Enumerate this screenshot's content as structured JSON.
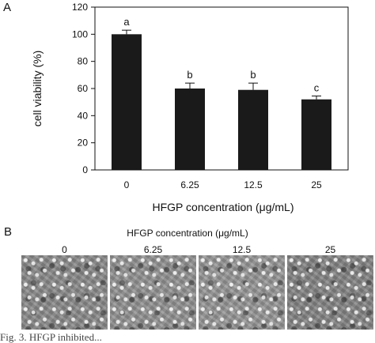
{
  "panel_a_letter": "A",
  "panel_b_letter": "B",
  "chart_data": {
    "type": "bar",
    "categories": [
      "0",
      "6.25",
      "12.5",
      "25"
    ],
    "values": [
      100,
      60,
      59,
      52
    ],
    "errors": [
      3,
      4,
      5,
      2.5
    ],
    "significance_letters": [
      "a",
      "b",
      "b",
      "c"
    ],
    "xlabel": "HFGP concentration (μg/mL)",
    "ylabel": "cell viability (%)",
    "ylim": [
      0,
      120
    ],
    "yticks": [
      "0",
      "20",
      "40",
      "60",
      "80",
      "100",
      "120"
    ],
    "grid": false,
    "bar_color": "#1a1a1a"
  },
  "micrographs": {
    "title": "HFGP concentration (μg/mL)",
    "labels": [
      "0",
      "6.25",
      "12.5",
      "25"
    ]
  },
  "caption_fragment": "Fig. 3. HFGP inhibited..."
}
